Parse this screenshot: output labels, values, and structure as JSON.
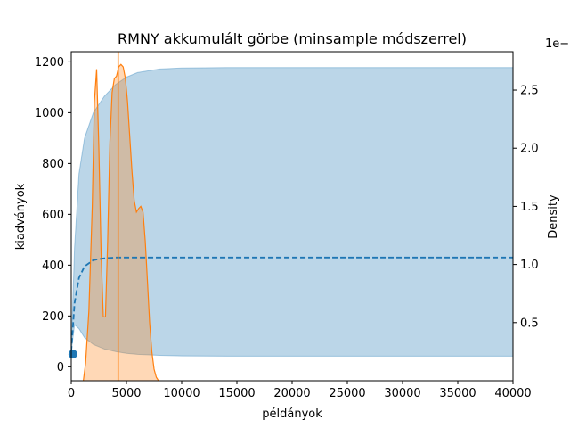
{
  "chart_data": {
    "type": "line",
    "title": "RMNY akkumulált görbe (minsample módszerrel)",
    "xlabel": "példányok",
    "ylabel": "kiadványok",
    "y2label": "Density",
    "y2_offset_text": "1e−",
    "xlim": [
      0,
      40000
    ],
    "ylim": [
      -55,
      1240
    ],
    "y2lim": [
      0.0,
      2.83
    ],
    "xticks": [
      0,
      5000,
      10000,
      15000,
      20000,
      25000,
      30000,
      35000,
      40000
    ],
    "xtick_labels": [
      "0",
      "5000",
      "10000",
      "15000",
      "20000",
      "25000",
      "30000",
      "35000",
      "40000"
    ],
    "yticks": [
      0,
      200,
      400,
      600,
      800,
      1000,
      1200
    ],
    "ytick_labels": [
      "0",
      "200",
      "400",
      "600",
      "800",
      "1000",
      "1200"
    ],
    "y2ticks": [
      0.5,
      1.0,
      1.5,
      2.0,
      2.5
    ],
    "y2tick_labels": [
      "0.5",
      "1.0",
      "1.5",
      "2.0",
      "2.5"
    ],
    "grid": false,
    "colors": {
      "band": "#1f77b4",
      "mean_line": "#1f77b4",
      "observed_point": "#1f77b4",
      "density": "#ff7f0e"
    },
    "observed_point": {
      "x": 150,
      "y": 50
    },
    "vertical_line_x": 4250,
    "band": {
      "x": [
        0,
        300,
        700,
        1200,
        2000,
        3000,
        4000,
        5000,
        6000,
        8000,
        10000,
        15000,
        20000,
        30000,
        40000
      ],
      "upper": [
        60,
        470,
        760,
        900,
        1000,
        1065,
        1110,
        1140,
        1158,
        1172,
        1176,
        1178,
        1178,
        1178,
        1178
      ],
      "lower": [
        60,
        165,
        150,
        115,
        88,
        70,
        60,
        53,
        49,
        45,
        43,
        42,
        42,
        42,
        42
      ]
    },
    "mean_curve": {
      "x": [
        0,
        300,
        700,
        1200,
        2000,
        3000,
        4000,
        5000,
        6000,
        10000,
        20000,
        30000,
        40000
      ],
      "y": [
        60,
        250,
        350,
        395,
        420,
        427,
        430,
        430,
        430,
        430,
        430,
        430,
        430
      ]
    },
    "density": {
      "x": [
        1100,
        1300,
        1600,
        1900,
        2100,
        2300,
        2500,
        2700,
        2900,
        3100,
        3300,
        3500,
        3700,
        3900,
        4100,
        4300,
        4500,
        4700,
        4900,
        5100,
        5300,
        5500,
        5700,
        5900,
        6100,
        6300,
        6500,
        6700,
        6900,
        7100,
        7300,
        7500,
        7700,
        7900
      ],
      "y": [
        0.0,
        0.15,
        0.6,
        1.5,
        2.4,
        2.68,
        2.0,
        1.1,
        0.55,
        0.55,
        1.2,
        2.05,
        2.48,
        2.6,
        2.62,
        2.7,
        2.72,
        2.7,
        2.6,
        2.4,
        2.1,
        1.8,
        1.55,
        1.45,
        1.48,
        1.5,
        1.45,
        1.2,
        0.85,
        0.5,
        0.25,
        0.1,
        0.03,
        0.0
      ]
    }
  }
}
